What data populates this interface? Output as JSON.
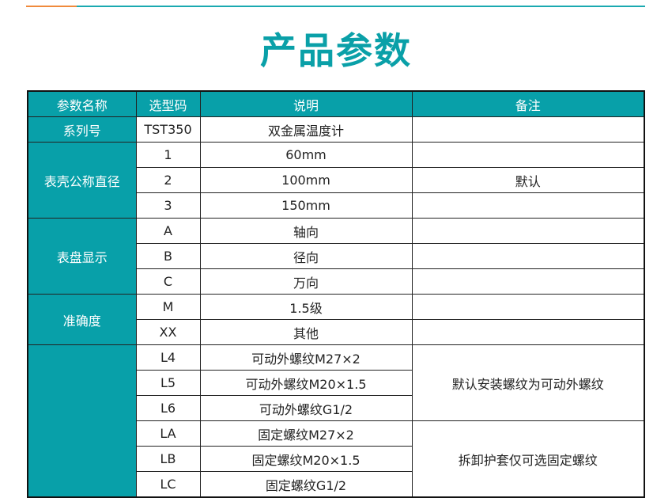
{
  "title": "产品参数",
  "colors": {
    "accent": "#08a0a9",
    "orange": "#f08a3c"
  },
  "headers": [
    "参数名称",
    "选型码",
    "说明",
    "备注"
  ],
  "r": {
    "series": {
      "name": "系列号",
      "code": "TST350",
      "desc": "双金属温度计",
      "note": ""
    },
    "dia": {
      "name": "表壳公称直径",
      "rows": [
        {
          "code": "1",
          "desc": "60mm"
        },
        {
          "code": "2",
          "desc": "100mm"
        },
        {
          "code": "3",
          "desc": "150mm"
        }
      ],
      "note": "默认"
    },
    "dial": {
      "name": "表盘显示",
      "rows": [
        {
          "code": "A",
          "desc": "轴向"
        },
        {
          "code": "B",
          "desc": "径向"
        },
        {
          "code": "C",
          "desc": "万向"
        }
      ]
    },
    "acc": {
      "name": "准确度",
      "rows": [
        {
          "code": "M",
          "desc": "1.5级"
        },
        {
          "code": "XX",
          "desc": "其他"
        }
      ]
    },
    "thread": {
      "name": "",
      "rows": [
        {
          "code": "L4",
          "desc": "可动外螺纹M27×2"
        },
        {
          "code": "L5",
          "desc": "可动外螺纹M20×1.5"
        },
        {
          "code": "L6",
          "desc": "可动外螺纹G1/2"
        },
        {
          "code": "LA",
          "desc": "固定螺纹M27×2"
        },
        {
          "code": "LB",
          "desc": "固定螺纹M20×1.5"
        },
        {
          "code": "LC",
          "desc": "固定螺纹G1/2"
        }
      ],
      "note1": "默认安装螺纹为可动外螺纹",
      "note2": "拆卸护套仅可选固定螺纹"
    }
  }
}
